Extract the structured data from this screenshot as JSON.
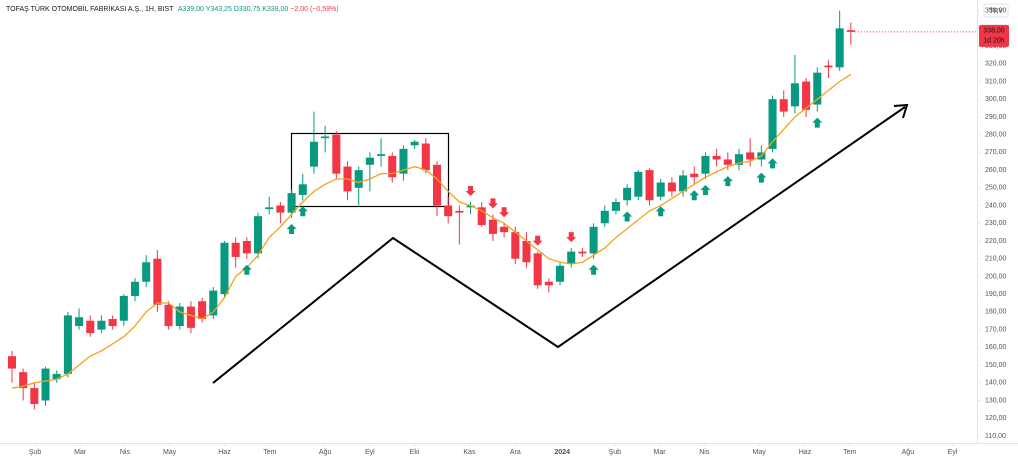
{
  "chart_data": {
    "type": "candlestick",
    "title": "TOFAŞ TÜRK OTOMOBİL FABRİKASI A.Ş., 1H, BIST",
    "ohlc_legend": [
      "A339,00",
      "Y343,25",
      "D330,75",
      "K338,00",
      "−2,00 (−0,59%)"
    ],
    "currency": "TRY",
    "price_label": "338,00",
    "countdown": "1d 20h",
    "up_color": "#089981",
    "down_color": "#f23645",
    "ma_color": "#f5a21b",
    "xlim": [
      -1.07,
      86.1
    ],
    "ylim": [
      106,
      356
    ],
    "xticks": [
      {
        "value": 2.06,
        "label": "Şub"
      },
      {
        "value": 6.1,
        "label": "Mar"
      },
      {
        "value": 10.1,
        "label": "Nis"
      },
      {
        "value": 14.1,
        "label": "May"
      },
      {
        "value": 19.0,
        "label": "Haz"
      },
      {
        "value": 23.06,
        "label": "Tem"
      },
      {
        "value": 28.0,
        "label": "Ağu"
      },
      {
        "value": 32.0,
        "label": "Eyl"
      },
      {
        "value": 36.0,
        "label": "Eki"
      },
      {
        "value": 40.9,
        "label": "Kas"
      },
      {
        "value": 45.0,
        "label": "Ara"
      },
      {
        "value": 49.2,
        "label": "2024"
      },
      {
        "value": 53.9,
        "label": "Şub"
      },
      {
        "value": 57.9,
        "label": "Mar"
      },
      {
        "value": 61.9,
        "label": "Nis"
      },
      {
        "value": 66.8,
        "label": "May"
      },
      {
        "value": 70.9,
        "label": "Haz"
      },
      {
        "value": 74.9,
        "label": "Tem"
      },
      {
        "value": 80.1,
        "label": "Ağu"
      },
      {
        "value": 84.1,
        "label": "Eyl"
      }
    ],
    "yticks": [
      {
        "value": 110,
        "label": "110,00"
      },
      {
        "value": 120,
        "label": "120,00"
      },
      {
        "value": 130,
        "label": "130,00"
      },
      {
        "value": 140,
        "label": "140,00"
      },
      {
        "value": 150,
        "label": "150,00"
      },
      {
        "value": 160,
        "label": "160,00"
      },
      {
        "value": 170,
        "label": "170,00"
      },
      {
        "value": 180,
        "label": "180,00"
      },
      {
        "value": 190,
        "label": "190,00"
      },
      {
        "value": 200,
        "label": "200,00"
      },
      {
        "value": 210,
        "label": "210,00"
      },
      {
        "value": 220,
        "label": "220,00"
      },
      {
        "value": 230,
        "label": "230,00"
      },
      {
        "value": 240,
        "label": "240,00"
      },
      {
        "value": 250,
        "label": "250,00"
      },
      {
        "value": 260,
        "label": "260,00"
      },
      {
        "value": 270,
        "label": "270,00"
      },
      {
        "value": 280,
        "label": "280,00"
      },
      {
        "value": 290,
        "label": "290,00"
      },
      {
        "value": 300,
        "label": "300,00"
      },
      {
        "value": 310,
        "label": "310,00"
      },
      {
        "value": 320,
        "label": "320,00"
      },
      {
        "value": 330,
        "label": "330,00"
      },
      {
        "value": 340,
        "label": "340,00"
      },
      {
        "value": 350,
        "label": "350,00"
      }
    ],
    "open": [
      155,
      146,
      137,
      130,
      142,
      145,
      172,
      175,
      170,
      176,
      175,
      189,
      197,
      210,
      184,
      172,
      183,
      186,
      178,
      190,
      219,
      220,
      213,
      238,
      240,
      236,
      246,
      262,
      278,
      280,
      262,
      250,
      263,
      268,
      268,
      258,
      274,
      275,
      263,
      240,
      237,
      239,
      239,
      232,
      228,
      225,
      220,
      213,
      197,
      197,
      207,
      214,
      213,
      230,
      237,
      243,
      245,
      260,
      245,
      253,
      248,
      258,
      258,
      268,
      266,
      263,
      270,
      266,
      272,
      300,
      296,
      310,
      297,
      319,
      318,
      339
    ],
    "high": [
      158,
      148,
      140,
      149,
      147,
      180,
      182,
      178,
      178,
      178,
      190,
      199,
      212,
      215,
      186,
      185,
      186,
      188,
      194,
      220,
      222,
      222,
      236,
      245,
      242,
      249,
      258,
      293,
      285,
      282,
      265,
      262,
      270,
      278,
      270,
      274,
      277,
      278,
      265,
      245,
      240,
      242,
      242,
      235,
      230,
      228,
      225,
      214,
      199,
      208,
      216,
      216,
      230,
      240,
      244,
      252,
      260,
      261,
      255,
      256,
      260,
      262,
      270,
      272,
      270,
      272,
      278,
      274,
      302,
      305,
      325,
      312,
      318,
      322,
      350,
      343.25
    ],
    "low": [
      140,
      130,
      125,
      127,
      140,
      143,
      170,
      166,
      168,
      170,
      172,
      186,
      194,
      180,
      170,
      170,
      168,
      174,
      176,
      188,
      205,
      210,
      210,
      235,
      230,
      233,
      243,
      258,
      270,
      255,
      243,
      240,
      248,
      262,
      253,
      254,
      272,
      258,
      234,
      230,
      218,
      235,
      228,
      220,
      222,
      207,
      205,
      193,
      191,
      195,
      205,
      211,
      210,
      228,
      235,
      240,
      243,
      240,
      243,
      245,
      245,
      252,
      255,
      262,
      260,
      260,
      262,
      262,
      270,
      290,
      292,
      290,
      293,
      312,
      316,
      330.75
    ],
    "close": [
      148,
      137,
      128,
      148,
      145,
      178,
      177,
      168,
      175,
      172,
      189,
      197,
      208,
      184,
      172,
      183,
      171,
      176,
      192,
      219,
      211,
      213,
      234,
      239,
      236,
      247,
      252,
      276,
      279,
      258,
      248,
      260,
      267,
      269,
      256,
      272,
      276,
      260,
      240,
      234,
      236,
      240,
      229,
      224,
      225,
      210,
      208,
      195,
      195,
      206,
      214,
      213,
      228,
      237,
      242,
      250,
      259,
      243,
      253,
      248,
      257,
      256,
      268,
      266,
      263,
      269,
      266,
      270,
      300,
      293,
      309,
      294,
      315,
      318,
      340,
      338
    ],
    "ma": [
      137,
      138,
      140,
      141,
      142,
      145,
      150,
      155,
      158,
      162,
      166,
      172,
      180,
      185,
      185,
      180,
      178,
      176,
      180,
      188,
      200,
      205,
      212,
      222,
      228,
      235,
      242,
      248,
      252,
      255,
      255,
      253,
      255,
      258,
      258,
      260,
      262,
      260,
      255,
      248,
      242,
      240,
      237,
      233,
      230,
      225,
      220,
      215,
      210,
      208,
      207,
      208,
      212,
      216,
      222,
      227,
      232,
      237,
      240,
      244,
      248,
      252,
      256,
      259,
      262,
      264,
      265,
      268,
      276,
      283,
      290,
      295,
      300,
      305,
      310,
      314
    ],
    "buy_signals": [
      21,
      25,
      26,
      52,
      55,
      58,
      61,
      62,
      64,
      67,
      68,
      72
    ],
    "sell_signals": [
      41,
      43,
      44,
      47,
      50
    ]
  }
}
